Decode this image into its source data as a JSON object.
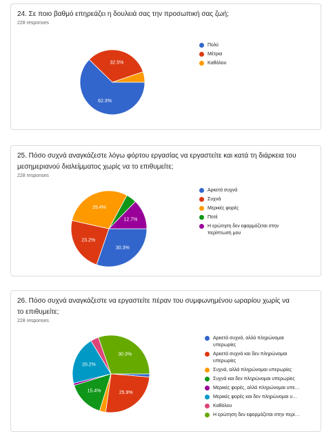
{
  "chart_data": [
    {
      "type": "pie",
      "title": "24. Σε ποιο βαθμό επηρεάζει η δουλειά σας την προσωπική σας ζωή;",
      "subtitle": "228 responses",
      "categories": [
        "Πολύ",
        "Μέτρια",
        "Καθόλου"
      ],
      "values": [
        62.3,
        32.5,
        5.2
      ],
      "value_labels": [
        "62.3%",
        "32.5%",
        null
      ],
      "colors": [
        "#3366cc",
        "#dc3912",
        "#ff9900"
      ]
    },
    {
      "type": "pie",
      "title": "25. Πόσο συχνά αναγκάζεστε λόγω φόρτου εργασίας να εργαστείτε και κατά τη διάρκεια του μεσημεριανού διαλείμματος χωρίς να το επιθυμείτε;",
      "subtitle": "228 responses",
      "categories": [
        "Αρκετά συχνά",
        "Συχνά",
        "Μερικές φορές",
        "Ποτέ",
        "Η ερώτηση δεν εφαρμόζεται στην περίπτωσή μου"
      ],
      "values": [
        30.3,
        23.2,
        29.4,
        4.4,
        12.7
      ],
      "value_labels": [
        "30.3%",
        "23.2%",
        "29.4%",
        null,
        "12.7%"
      ],
      "colors": [
        "#3366cc",
        "#dc3912",
        "#ff9900",
        "#109618",
        "#990099"
      ]
    },
    {
      "type": "pie",
      "title": "26. Πόσο συχνά αναγκάζεστε να εργαστείτε πέραν του συμφωνημένου ωραρίου χωρίς να το επιθυμείτε;",
      "subtitle": "228 responses",
      "categories": [
        "Αρκετά συχνά, αλλά πληρώνομαι υπερωρίες",
        "Αρκετά συχνά και δεν πληρώνομαι υπερωρίες",
        "Συχνά, αλλά πληρώνομαι υπερωρίες",
        "Συχνά και δεν πληρώνομαι υπερωρίες",
        "Μερικές φορές, αλλά πληρώνομαι υπε…",
        "Μερικές φορές και δεν πληρώνομαι υ…",
        "Καθόλου",
        "Η ερώτηση δεν εφαρμόζεται στην περί…"
      ],
      "values": [
        1.3,
        25.9,
        2.6,
        15.4,
        0.9,
        20.2,
        3.4,
        30.3
      ],
      "value_labels": [
        null,
        "25.9%",
        null,
        "15.4%",
        null,
        "20.2%",
        null,
        "30.3%"
      ],
      "colors": [
        "#3366cc",
        "#dc3912",
        "#ff9900",
        "#109618",
        "#990099",
        "#0099c6",
        "#dd4477",
        "#66aa00"
      ]
    }
  ]
}
